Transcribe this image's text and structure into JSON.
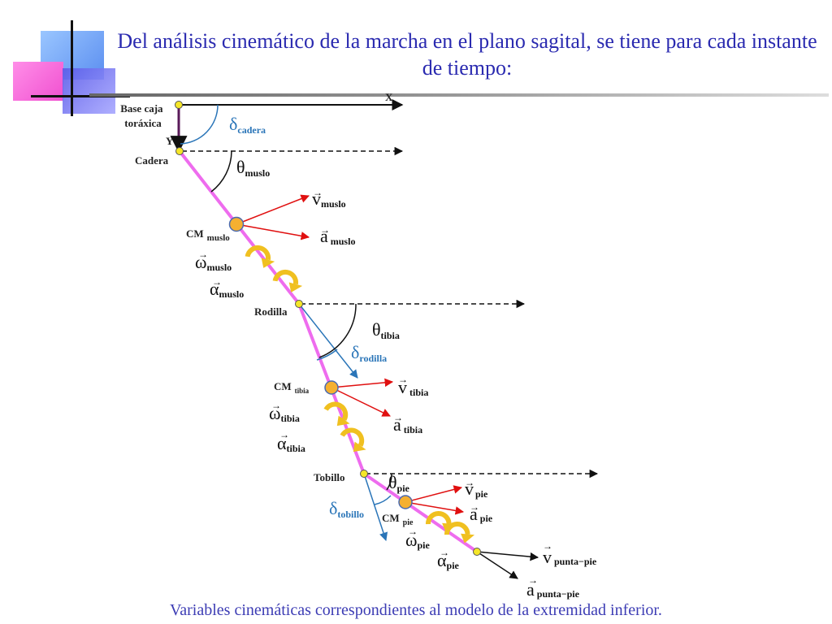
{
  "title": "Del análisis cinemático de la marcha en el plano sagital, se tiene para cada instante de tiempo:",
  "caption": "Variables cinemáticas correspondientes al modelo de la extremidad inferior.",
  "axes": {
    "x": "X",
    "y": "Y"
  },
  "joints": {
    "base": "Base caja\ntoráxica",
    "cadera": "Cadera",
    "rodilla": "Rodilla",
    "tobillo": "Tobillo"
  },
  "cm_labels": {
    "cm": "CM",
    "muslo": "muslo",
    "tibia": "tibia",
    "pie": "pie"
  },
  "angles": {
    "delta_cadera": {
      "sym": "δ",
      "sub": "cadera"
    },
    "theta_muslo": {
      "sym": "θ",
      "sub": "muslo"
    },
    "theta_tibia": {
      "sym": "θ",
      "sub": "tibia"
    },
    "delta_rodilla": {
      "sym": "δ",
      "sub": "rodilla"
    },
    "theta_pie": {
      "sym": "θ",
      "sub": "pie"
    },
    "delta_tobillo": {
      "sym": "δ",
      "sub": "tobillo"
    }
  },
  "vectors": {
    "v_muslo": {
      "sym": "v",
      "sub": "muslo"
    },
    "a_muslo": {
      "sym": "a",
      "sub": "muslo"
    },
    "w_muslo": {
      "sym": "ω",
      "sub": "muslo"
    },
    "al_muslo": {
      "sym": "α",
      "sub": "muslo"
    },
    "v_tibia": {
      "sym": "v",
      "sub": "tibia"
    },
    "a_tibia": {
      "sym": "a",
      "sub": "tibia"
    },
    "w_tibia": {
      "sym": "ω",
      "sub": "tibia"
    },
    "al_tibia": {
      "sym": "α",
      "sub": "tibia"
    },
    "v_pie": {
      "sym": "v",
      "sub": "pie"
    },
    "a_pie": {
      "sym": "a",
      "sub": "pie"
    },
    "w_pie": {
      "sym": "ω",
      "sub": "pie"
    },
    "al_pie": {
      "sym": "α",
      "sub": "pie"
    },
    "v_punta": {
      "sym": "v",
      "sub": "punta−pie"
    },
    "a_punta": {
      "sym": "a",
      "sub": "punta−pie"
    }
  },
  "arrow_mark": "→",
  "colors": {
    "title": "#2a2ab0",
    "limb": "#ee6cee",
    "velocity": "#e01010",
    "joint": "#f5e628",
    "cm": "#f5b030",
    "rotation": "#f0c020",
    "angle_blue": "#2a75b8"
  }
}
